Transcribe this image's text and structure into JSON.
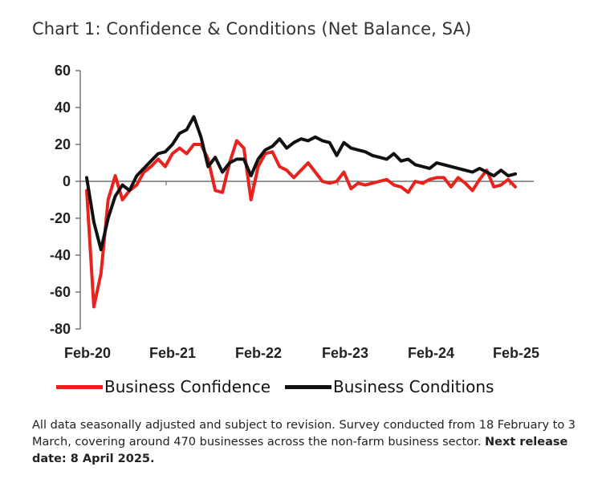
{
  "title": "Chart 1: Confidence & Conditions (Net Balance, SA)",
  "chart_data": {
    "type": "line",
    "ylim": [
      -80,
      60
    ],
    "yticks": [
      "60",
      "40",
      "20",
      "0",
      "-20",
      "-40",
      "-60",
      "-80"
    ],
    "xtick_labels": [
      "Feb-20",
      "Feb-21",
      "Feb-22",
      "Feb-23",
      "Feb-24",
      "Feb-25"
    ],
    "grid": false,
    "legend_position": "bottom",
    "series": [
      {
        "name": "Business Confidence",
        "color": "#e8231e",
        "values": [
          -5,
          -68,
          -50,
          -10,
          3,
          -10,
          -5,
          -2,
          5,
          8,
          12,
          8,
          15,
          18,
          15,
          20,
          20,
          12,
          -5,
          -6,
          10,
          22,
          18,
          -10,
          8,
          15,
          16,
          8,
          6,
          2,
          6,
          10,
          5,
          0,
          -1,
          0,
          5,
          -4,
          -1,
          -2,
          -1,
          0,
          1,
          -2,
          -3,
          -6,
          0,
          -1,
          1,
          2,
          2,
          -3,
          2,
          -1,
          -5,
          1,
          6,
          -3,
          -2,
          1,
          -3
        ]
      },
      {
        "name": "Business Conditions",
        "color": "#111111",
        "values": [
          2,
          -22,
          -37,
          -20,
          -8,
          -2,
          -5,
          3,
          7,
          11,
          15,
          16,
          20,
          26,
          28,
          35,
          24,
          8,
          13,
          5,
          10,
          12,
          12,
          3,
          12,
          17,
          19,
          23,
          18,
          21,
          23,
          22,
          24,
          22,
          21,
          14,
          21,
          18,
          17,
          16,
          14,
          13,
          12,
          15,
          11,
          12,
          9,
          8,
          7,
          10,
          9,
          8,
          7,
          6,
          5,
          7,
          5,
          3,
          6,
          3,
          4
        ]
      }
    ]
  },
  "legend": [
    {
      "label": "Business Confidence",
      "color": "#e8231e"
    },
    {
      "label": "Business Conditions",
      "color": "#111111"
    }
  ],
  "note": {
    "text": "All data seasonally adjusted and subject to revision. Survey conducted from 18 February to 3 March, covering around 470 businesses across the non-farm business sector. ",
    "bold": "Next release date: 8 April 2025."
  }
}
